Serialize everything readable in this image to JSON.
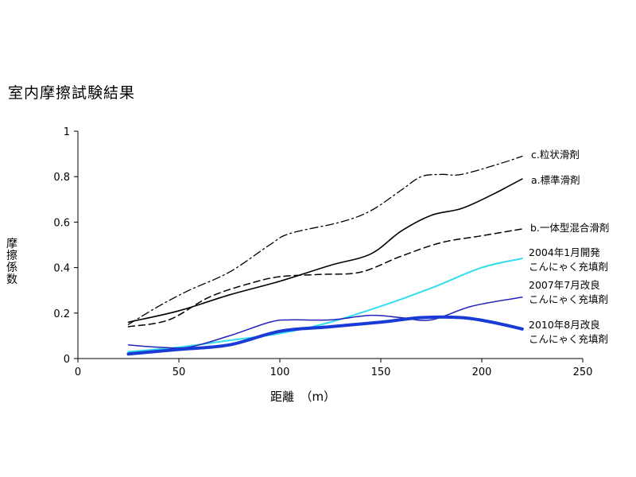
{
  "title": "室内摩擦試験結果",
  "chart_data": {
    "type": "line",
    "xlabel": "距離　（m）",
    "ylabel": "摩擦係数",
    "xlim": [
      0,
      250
    ],
    "ylim": [
      0,
      1
    ],
    "xticks": [
      0,
      50,
      100,
      150,
      200,
      250
    ],
    "yticks": [
      0,
      0.2,
      0.4,
      0.6,
      0.8,
      1
    ],
    "grid": false,
    "legend": "inline-right",
    "series": [
      {
        "name": "c.粒状滑剤",
        "style": "dashdot",
        "color": "#000000",
        "width": 1.3,
        "x": [
          25,
          40,
          55,
          75,
          95,
          105,
          130,
          145,
          160,
          170,
          180,
          190,
          210,
          220
        ],
        "y": [
          0.15,
          0.23,
          0.3,
          0.38,
          0.5,
          0.55,
          0.6,
          0.65,
          0.74,
          0.8,
          0.81,
          0.81,
          0.86,
          0.89
        ]
      },
      {
        "name": "a.標準滑剤",
        "style": "solid",
        "color": "#000000",
        "width": 1.6,
        "x": [
          25,
          50,
          75,
          100,
          125,
          145,
          160,
          175,
          190,
          205,
          220
        ],
        "y": [
          0.16,
          0.21,
          0.28,
          0.34,
          0.41,
          0.46,
          0.56,
          0.63,
          0.66,
          0.72,
          0.79
        ]
      },
      {
        "name": "b.一体型混合滑剤",
        "style": "dashed",
        "color": "#000000",
        "width": 1.5,
        "x": [
          25,
          45,
          65,
          85,
          100,
          120,
          140,
          160,
          180,
          200,
          220
        ],
        "y": [
          0.14,
          0.17,
          0.27,
          0.33,
          0.36,
          0.37,
          0.38,
          0.45,
          0.51,
          0.54,
          0.57
        ]
      },
      {
        "name": "2004年1月開発\nこんにゃく充填剤",
        "style": "solid",
        "color": "#33ddee",
        "width": 2,
        "x": [
          25,
          50,
          75,
          100,
          125,
          150,
          175,
          200,
          220
        ],
        "y": [
          0.03,
          0.05,
          0.08,
          0.11,
          0.16,
          0.23,
          0.31,
          0.4,
          0.44
        ]
      },
      {
        "name": "2007年7月改良\nこんにゃく充填剤",
        "style": "solid",
        "color": "#2222bb",
        "width": 1.5,
        "x": [
          25,
          40,
          55,
          75,
          95,
          105,
          125,
          145,
          160,
          175,
          195,
          220
        ],
        "y": [
          0.06,
          0.05,
          0.05,
          0.1,
          0.16,
          0.17,
          0.17,
          0.19,
          0.18,
          0.17,
          0.23,
          0.27
        ]
      },
      {
        "name": "2010年8月改良\nこんにゃく充填剤",
        "style": "solid",
        "color": "#1a3ad6",
        "width": 4,
        "x": [
          25,
          50,
          75,
          100,
          125,
          150,
          170,
          190,
          205,
          220
        ],
        "y": [
          0.02,
          0.04,
          0.06,
          0.12,
          0.14,
          0.16,
          0.18,
          0.18,
          0.16,
          0.13
        ]
      }
    ]
  }
}
